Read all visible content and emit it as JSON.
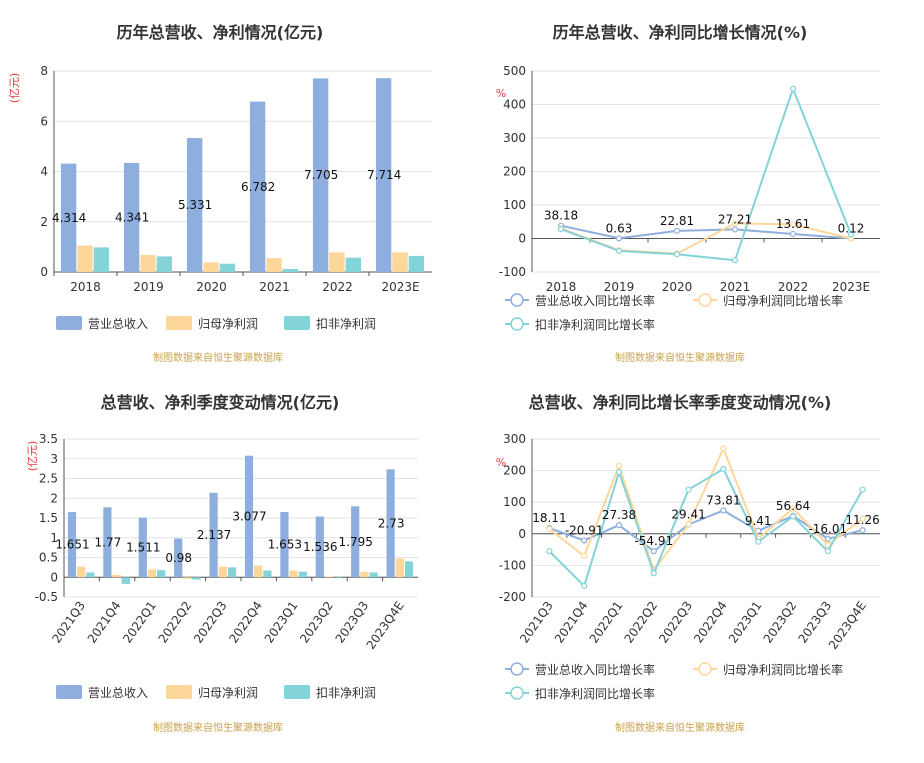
{
  "colors": {
    "revenue": "#8eaedd",
    "profit": "#fdd79a",
    "deducted": "#84d3d8",
    "grid": "#e3e3e3",
    "axis": "#555555",
    "unit": "#e4393c",
    "source": "#c9a24a"
  },
  "source_note": "制图数据来自恒生聚源数据库",
  "chart_data": [
    {
      "id": "annual_amount",
      "type": "bar",
      "title": "历年总营收、净利情况(亿元)",
      "unit_label": "(亿元)",
      "categories": [
        "2018",
        "2019",
        "2020",
        "2021",
        "2022",
        "2023E"
      ],
      "ylim": [
        0,
        8
      ],
      "yticks": [
        0,
        2,
        4,
        6,
        8
      ],
      "grid": true,
      "legend_position": "bottom-left",
      "label_series": 0,
      "data_labels": [
        "4.314",
        "4.341",
        "5.331",
        "6.782",
        "7.705",
        "7.714"
      ],
      "series": [
        {
          "name": "营业总收入",
          "color_key": "revenue",
          "values": [
            4.314,
            4.341,
            5.331,
            6.782,
            7.705,
            7.714
          ]
        },
        {
          "name": "归母净利润",
          "color_key": "profit",
          "values": [
            1.05,
            0.68,
            0.38,
            0.55,
            0.78,
            0.78
          ]
        },
        {
          "name": "扣非净利润",
          "color_key": "deducted",
          "values": [
            0.98,
            0.62,
            0.33,
            0.12,
            0.57,
            0.64
          ]
        }
      ]
    },
    {
      "id": "annual_growth",
      "type": "line",
      "title": "历年总营收、净利同比增长情况(%)",
      "unit_label": "%",
      "categories": [
        "2018",
        "2019",
        "2020",
        "2021",
        "2022",
        "2023E"
      ],
      "ylim": [
        -100,
        500
      ],
      "yticks": [
        -100,
        0,
        100,
        200,
        300,
        400,
        500
      ],
      "grid": true,
      "legend_position": "bottom-left",
      "label_series": 0,
      "data_labels": [
        "38.18",
        "0.63",
        "22.81",
        "27.21",
        "13.61",
        "0.12"
      ],
      "series": [
        {
          "name": "营业总收入同比增长率",
          "color_key": "revenue",
          "values": [
            38.18,
            0.63,
            22.81,
            27.21,
            13.61,
            0.12
          ]
        },
        {
          "name": "归母净利润同比增长率",
          "color_key": "profit",
          "values": [
            30,
            -35,
            -45,
            45,
            42,
            0
          ]
        },
        {
          "name": "扣非净利润同比增长率",
          "color_key": "deducted",
          "values": [
            28,
            -37,
            -47,
            -65,
            447,
            12
          ]
        }
      ]
    },
    {
      "id": "quarterly_amount",
      "type": "bar",
      "title": "总营收、净利季度变动情况(亿元)",
      "unit_label": "(亿元)",
      "categories": [
        "2021Q3",
        "2021Q4",
        "2022Q1",
        "2022Q2",
        "2022Q3",
        "2022Q4",
        "2023Q1",
        "2023Q2",
        "2023Q3",
        "2023Q4E"
      ],
      "ylim": [
        -0.5,
        3.5
      ],
      "yticks": [
        -0.5,
        0,
        0.5,
        1,
        1.5,
        2,
        2.5,
        3,
        3.5
      ],
      "grid": true,
      "legend_position": "bottom-left",
      "label_series": 0,
      "data_labels": [
        "1.651",
        "1.77",
        "1.511",
        "0.98",
        "2.137",
        "3.077",
        "1.653",
        "1.536",
        "1.795",
        "2.73"
      ],
      "series": [
        {
          "name": "营业总收入",
          "color_key": "revenue",
          "values": [
            1.651,
            1.77,
            1.511,
            0.98,
            2.137,
            3.077,
            1.653,
            1.536,
            1.795,
            2.73
          ]
        },
        {
          "name": "归母净利润",
          "color_key": "profit",
          "values": [
            0.27,
            0.06,
            0.2,
            -0.04,
            0.27,
            0.3,
            0.17,
            0.02,
            0.14,
            0.47
          ]
        },
        {
          "name": "扣非净利润",
          "color_key": "deducted",
          "values": [
            0.12,
            -0.17,
            0.18,
            -0.06,
            0.25,
            0.17,
            0.14,
            -0.02,
            0.12,
            0.4
          ]
        }
      ]
    },
    {
      "id": "quarterly_growth",
      "type": "line",
      "title": "总营收、净利同比增长率季度变动情况(%)",
      "unit_label": "%",
      "categories": [
        "2021Q3",
        "2021Q4",
        "2022Q1",
        "2022Q2",
        "2022Q3",
        "2022Q4",
        "2023Q1",
        "2023Q2",
        "2023Q3",
        "2023Q4E"
      ],
      "ylim": [
        -200,
        300
      ],
      "yticks": [
        -200,
        -100,
        0,
        100,
        200,
        300
      ],
      "grid": true,
      "legend_position": "bottom-left",
      "label_series": 0,
      "data_labels": [
        "18.11",
        "-20.91",
        "27.38",
        "-54.91",
        "29.41",
        "73.81",
        "9.41",
        "56.64",
        "-16.01",
        "11.26"
      ],
      "series": [
        {
          "name": "营业总收入同比增长率",
          "color_key": "revenue",
          "values": [
            18.11,
            -20.91,
            27.38,
            -54.91,
            29.41,
            73.81,
            9.41,
            56.64,
            -16.01,
            11.26
          ]
        },
        {
          "name": "归母净利润同比增长率",
          "color_key": "profit",
          "values": [
            15,
            -70,
            215,
            -115,
            30,
            270,
            -15,
            80,
            -35,
            48
          ]
        },
        {
          "name": "扣非净利润同比增长率",
          "color_key": "deducted",
          "values": [
            -55,
            -165,
            195,
            -125,
            140,
            205,
            -25,
            55,
            -55,
            140
          ]
        }
      ]
    }
  ]
}
